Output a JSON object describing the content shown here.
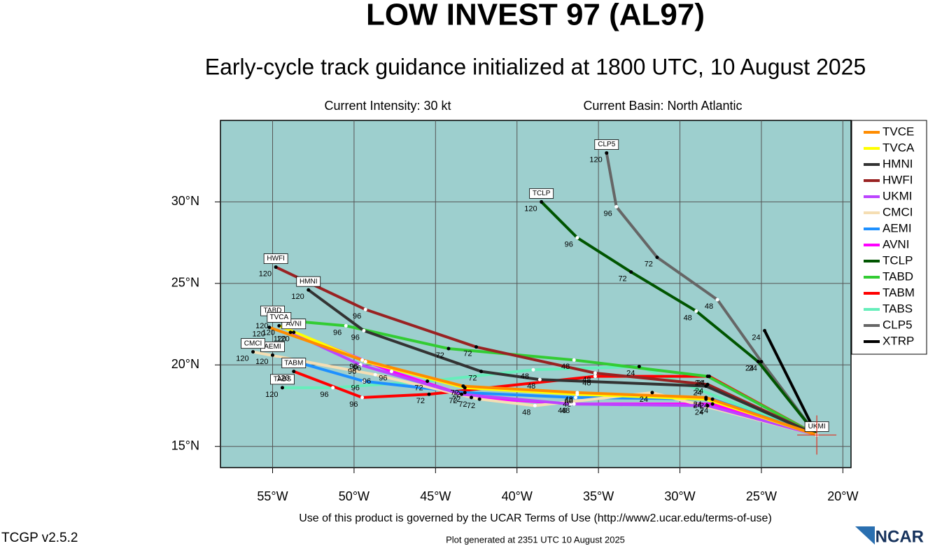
{
  "chart_data": {
    "type": "track",
    "title": "LOW INVEST 97 (AL97)",
    "subtitle": "Early-cycle track guidance initialized at 1800 UTC, 10 August 2025",
    "intensity": "Current Intensity: 30 kt",
    "basin": "Current Basin: North Atlantic",
    "footer": "Use of this product is governed by the UCAR Terms of Use (http://www2.ucar.edu/terms-of-use)",
    "version": "TCGP v2.5.2",
    "generated": "Plot generated at 2351 UTC   10 August 2025",
    "logo": "NCAR",
    "xlim": [
      -58.2,
      -19.5
    ],
    "ylim": [
      13.7,
      35
    ],
    "xticks": [
      {
        "value": -55,
        "label": "55°W"
      },
      {
        "value": -50,
        "label": "50°W"
      },
      {
        "value": -45,
        "label": "45°W"
      },
      {
        "value": -40,
        "label": "40°W"
      },
      {
        "value": -35,
        "label": "35°W"
      },
      {
        "value": -30,
        "label": "30°W"
      },
      {
        "value": -25,
        "label": "25°W"
      },
      {
        "value": -20,
        "label": "20°W"
      }
    ],
    "yticks": [
      {
        "value": 15,
        "label": "15°N"
      },
      {
        "value": 20,
        "label": "20°N"
      },
      {
        "value": 25,
        "label": "25°N"
      },
      {
        "value": 30,
        "label": "30°N"
      }
    ],
    "grid": true,
    "background": "#9dcfce",
    "series": [
      {
        "name": "TVCE",
        "color": "#ff8c00",
        "lon": [
          -21.6,
          -28.4,
          -36.3,
          -43.3,
          -49.5,
          -55.2
        ],
        "lat": [
          15.7,
          18.0,
          18.3,
          18.7,
          20.3,
          22.3
        ],
        "hours": [
          null,
          24,
          48,
          72,
          96,
          120
        ]
      },
      {
        "name": "TVCA",
        "color": "#ffff00",
        "lon": [
          -21.6,
          -28.4,
          -36.3,
          -43.2,
          -49.3,
          -54.6
        ],
        "lat": [
          15.7,
          17.9,
          18.2,
          18.6,
          20.2,
          22.4
        ],
        "hours": [
          null,
          24,
          48,
          72,
          96,
          120
        ],
        "tag": "end"
      },
      {
        "name": "HMNI",
        "color": "#333333",
        "lon": [
          -21.6,
          -28.4,
          -38.6,
          -42.2,
          -49.4,
          -52.8
        ],
        "lat": [
          15.7,
          18.7,
          19.1,
          19.6,
          22.1,
          24.6
        ],
        "hours": [
          null,
          24,
          48,
          72,
          96,
          120
        ],
        "tag": "end"
      },
      {
        "name": "HWFI",
        "color": "#992222",
        "lon": [
          -21.6,
          -28.3,
          -35.2,
          -42.5,
          -49.3,
          -54.8
        ],
        "lat": [
          15.7,
          18.8,
          19.5,
          21.1,
          23.4,
          26.0
        ],
        "hours": [
          null,
          24,
          48,
          72,
          96,
          120
        ],
        "tag": "end"
      },
      {
        "name": "UKMI",
        "color": "#bb44ff",
        "lon": [
          -21.6,
          -28.3,
          -36.7,
          -43.4,
          -49.6,
          -53.9
        ],
        "lat": [
          15.7,
          17.5,
          17.6,
          18.2,
          20.0,
          22.0
        ],
        "hours": [
          null,
          24,
          48,
          72,
          96,
          120
        ],
        "tag": "start"
      },
      {
        "name": "CMCI",
        "color": "#f5deb3",
        "lon": [
          -21.6,
          -31.7,
          -38.9,
          -42.3,
          -48.7,
          -56.2
        ],
        "lat": [
          15.7,
          18.3,
          17.5,
          17.9,
          19.4,
          20.8
        ],
        "hours": [
          null,
          24,
          48,
          72,
          96,
          120
        ],
        "tag": "end"
      },
      {
        "name": "AEMI",
        "color": "#1e90ff",
        "lon": [
          -21.6,
          -28.0,
          -36.4,
          -43.2,
          -49.4,
          -55.0
        ],
        "lat": [
          15.7,
          17.9,
          18.0,
          18.3,
          19.0,
          20.6
        ],
        "hours": [
          null,
          24,
          48,
          72,
          96,
          120
        ],
        "tag": "end"
      },
      {
        "name": "AVNI",
        "color": "#ff00ff",
        "lon": [
          -21.6,
          -28.0,
          -36.5,
          -42.8,
          -47.7,
          -53.7
        ],
        "lat": [
          15.7,
          17.6,
          17.6,
          18.0,
          19.6,
          22.0
        ],
        "hours": [
          null,
          24,
          48,
          72,
          96,
          120
        ],
        "tag": "end"
      },
      {
        "name": "TCLP",
        "color": "#005500",
        "lon": [
          -21.6,
          -25.2,
          -29.0,
          -33.0,
          -36.3,
          -38.5
        ],
        "lat": [
          15.7,
          20.2,
          23.3,
          25.7,
          27.8,
          30.0
        ],
        "hours": [
          null,
          24,
          48,
          72,
          96,
          120
        ],
        "tag": "end"
      },
      {
        "name": "TABD",
        "color": "#33cc33",
        "lon": [
          -21.6,
          -28.3,
          -36.5,
          -44.2,
          -50.5,
          -55.0
        ],
        "lat": [
          15.7,
          19.3,
          20.3,
          21.0,
          22.4,
          22.8
        ],
        "hours": [
          null,
          24,
          48,
          72,
          96,
          120
        ],
        "tag": "end"
      },
      {
        "name": "TABM",
        "color": "#ff0000",
        "lon": [
          -21.6,
          -28.2,
          -35.2,
          -45.4,
          -49.5,
          -53.7
        ],
        "lat": [
          15.7,
          19.3,
          19.3,
          18.2,
          18.0,
          19.6
        ],
        "hours": [
          null,
          24,
          48,
          72,
          96,
          120
        ],
        "tag": "end"
      },
      {
        "name": "TABS",
        "color": "#66eebb",
        "lon": [
          -21.6,
          -32.5,
          -39.0,
          -45.5,
          -51.3,
          -54.4
        ],
        "lat": [
          15.7,
          19.9,
          19.7,
          19.0,
          18.6,
          18.6
        ],
        "hours": [
          null,
          24,
          48,
          72,
          96,
          120
        ],
        "tag": "end"
      },
      {
        "name": "CLP5",
        "color": "#666666",
        "lon": [
          -21.6,
          -25.0,
          -27.7,
          -31.4,
          -33.9,
          -34.5
        ],
        "lat": [
          15.7,
          20.2,
          24.0,
          26.6,
          29.7,
          33.0
        ],
        "hours": [
          null,
          24,
          48,
          72,
          96,
          120
        ],
        "tag": "end"
      },
      {
        "name": "XTRP",
        "color": "#000000",
        "lon": [
          -21.6,
          -24.8
        ],
        "lat": [
          15.7,
          22.1
        ],
        "hours": [
          null,
          24
        ]
      }
    ]
  }
}
